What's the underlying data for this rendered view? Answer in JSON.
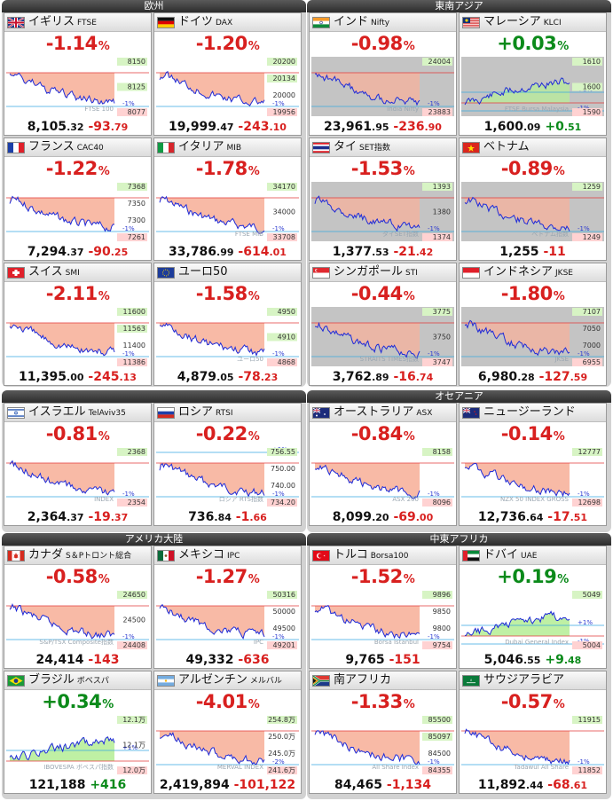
{
  "groups": [
    {
      "id": "europe",
      "title": "欧州",
      "cards": [
        {
          "name": "イギリス",
          "code": "FTSE",
          "pct": "-1.14",
          "price_int": "8,105",
          "price_dec": ".32",
          "change_int": "-93",
          "change_dec": ".79",
          "trend": "neg",
          "flag": "uk",
          "labels": [
            "8150",
            "8125",
            "8077"
          ],
          "ref_label": "8125",
          "closed": false,
          "watermark": "FTSE 100",
          "pct_lines": [
            "",
            "-1%"
          ]
        },
        {
          "name": "ドイツ",
          "code": "DAX",
          "pct": "-1.20",
          "price_int": "19,999",
          "price_dec": ".47",
          "change_int": "-243",
          "change_dec": ".10",
          "trend": "neg",
          "flag": "de",
          "labels": [
            "20200",
            "20134",
            "20000",
            "19956"
          ],
          "ref_label": "20134",
          "closed": false,
          "watermark": "",
          "pct_lines": [
            "",
            "-1%"
          ]
        },
        {
          "name": "フランス",
          "code": "CAC40",
          "pct": "-1.22",
          "price_int": "7,294",
          "price_dec": ".37",
          "change_int": "-90",
          "change_dec": ".25",
          "trend": "neg",
          "flag": "fr",
          "labels": [
            "7368",
            "7350",
            "7300",
            "7261"
          ],
          "ref_label": "7368",
          "closed": false,
          "watermark": "",
          "pct_lines": [
            "",
            "-1%"
          ]
        },
        {
          "name": "イタリア",
          "code": "MIB",
          "pct": "-1.78",
          "price_int": "33,786",
          "price_dec": ".99",
          "change_int": "-614",
          "change_dec": ".01",
          "trend": "neg",
          "flag": "it",
          "labels": [
            "34170",
            "34000",
            "33708"
          ],
          "ref_label": "34170",
          "closed": false,
          "watermark": "FTSE MIB",
          "pct_lines": [
            "",
            "-1%"
          ]
        },
        {
          "name": "スイス",
          "code": "SMI",
          "pct": "-2.11",
          "price_int": "11,395",
          "price_dec": ".00",
          "change_int": "-245",
          "change_dec": ".13",
          "trend": "neg",
          "flag": "ch",
          "labels": [
            "11600",
            "11563",
            "11400",
            "11386"
          ],
          "ref_label": "11563",
          "closed": false,
          "watermark": "",
          "pct_lines": [
            "",
            "-1%"
          ]
        },
        {
          "name": "ユーロ50",
          "code": "",
          "pct": "-1.58",
          "price_int": "4,879",
          "price_dec": ".05",
          "change_int": "-78",
          "change_dec": ".23",
          "trend": "neg",
          "flag": "eu",
          "labels": [
            "4950",
            "4910",
            "4868"
          ],
          "ref_label": "4910",
          "closed": false,
          "watermark": "ユーロ50",
          "pct_lines": [
            "",
            "-1%"
          ]
        }
      ]
    },
    {
      "id": "se-asia",
      "title": "東南アジア",
      "cards": [
        {
          "name": "インド",
          "code": "Nifty",
          "pct": "-0.98",
          "price_int": "23,961",
          "price_dec": ".95",
          "change_int": "-236",
          "change_dec": ".90",
          "trend": "neg",
          "flag": "in",
          "labels": [
            "24004",
            "23883"
          ],
          "ref_label": "24004",
          "closed": true,
          "watermark": "India Nifty",
          "pct_lines": [
            "",
            "-1%"
          ]
        },
        {
          "name": "マレーシア",
          "code": "KLCI",
          "pct": "+0.03",
          "price_int": "1,600",
          "price_dec": ".09",
          "change_int": "+0",
          "change_dec": ".51",
          "trend": "pos",
          "flag": "my",
          "labels": [
            "1610",
            "1600",
            "1590"
          ],
          "ref_label": "1600",
          "closed": true,
          "watermark": "FTSE Bursa Malaysia",
          "pct_lines": [
            "+1%",
            "-1%"
          ]
        },
        {
          "name": "タイ",
          "code": "SET指数",
          "pct": "-1.53",
          "price_int": "1,377",
          "price_dec": ".53",
          "change_int": "-21",
          "change_dec": ".42",
          "trend": "neg",
          "flag": "th",
          "labels": [
            "1393",
            "1380",
            "1374"
          ],
          "ref_label": "1393",
          "closed": true,
          "watermark": "タイSET指数",
          "pct_lines": [
            "",
            "-1%"
          ]
        },
        {
          "name": "ベトナム",
          "code": "",
          "pct": "-0.89",
          "price_int": "1,255",
          "price_dec": "",
          "change_int": "-11",
          "change_dec": "",
          "trend": "neg",
          "flag": "vn",
          "labels": [
            "1259",
            "1249"
          ],
          "ref_label": "1259",
          "closed": true,
          "watermark": "ベトナム指数",
          "pct_lines": [
            "",
            "-1%"
          ]
        },
        {
          "name": "シンガポール",
          "code": "STI",
          "pct": "-0.44",
          "price_int": "3,762",
          "price_dec": ".89",
          "change_int": "-16",
          "change_dec": ".74",
          "trend": "neg",
          "flag": "sg",
          "labels": [
            "3775",
            "3750",
            "3747"
          ],
          "ref_label": "3775",
          "closed": true,
          "watermark": "STRAITS TIMES指数",
          "pct_lines": [
            "",
            "-1%"
          ]
        },
        {
          "name": "インドネシア",
          "code": "JKSE",
          "pct": "-1.80",
          "price_int": "6,980",
          "price_dec": ".28",
          "change_int": "-127",
          "change_dec": ".59",
          "trend": "neg",
          "flag": "id",
          "labels": [
            "7107",
            "7050",
            "7000",
            "6955"
          ],
          "ref_label": "7107",
          "closed": true,
          "watermark": "JKSE",
          "pct_lines": [
            "",
            "-1%"
          ]
        }
      ]
    },
    {
      "id": "misc",
      "title": "",
      "cards": [
        {
          "name": "イスラエル",
          "code": "TelAviv35",
          "pct": "-0.81",
          "price_int": "2,364",
          "price_dec": ".37",
          "change_int": "-19",
          "change_dec": ".37",
          "trend": "neg",
          "flag": "il",
          "labels": [
            "2368",
            "2354"
          ],
          "ref_label": "2368",
          "closed": false,
          "watermark": "INDEX",
          "pct_lines": [
            "",
            "-1%"
          ]
        },
        {
          "name": "ロシア",
          "code": "RTSI",
          "pct": "-0.22",
          "price_int": "736",
          "price_dec": ".84",
          "change_int": "-1",
          "change_dec": ".66",
          "trend": "neg",
          "flag": "ru",
          "labels": [
            "756.55",
            "750.00",
            "740.00",
            "734.20"
          ],
          "ref_label": "734.20",
          "closed": false,
          "watermark": "ロシア RTS指数",
          "pct_lines": [
            "+1%",
            "-1%"
          ]
        }
      ]
    },
    {
      "id": "oceania",
      "title": "オセアニア",
      "cards": [
        {
          "name": "オーストラリア",
          "code": "ASX",
          "pct": "-0.84",
          "price_int": "8,099",
          "price_dec": ".20",
          "change_int": "-69",
          "change_dec": ".00",
          "trend": "neg",
          "flag": "au",
          "labels": [
            "8158",
            "8096"
          ],
          "ref_label": "8158",
          "closed": false,
          "watermark": "ASX 200",
          "pct_lines": [
            "",
            "-1%"
          ]
        },
        {
          "name": "ニュージーランド",
          "code": "",
          "pct": "-0.14",
          "price_int": "12,736",
          "price_dec": ".64",
          "change_int": "-17",
          "change_dec": ".51",
          "trend": "neg",
          "flag": "nz",
          "labels": [
            "12777",
            "12698"
          ],
          "ref_label": "12777",
          "closed": false,
          "watermark": "NZX 50 INDEX GROSS",
          "pct_lines": [
            "",
            "-1%"
          ]
        }
      ]
    },
    {
      "id": "americas",
      "title": "アメリカ大陸",
      "cards": [
        {
          "name": "カナダ",
          "code": "S＆Pトロント総合",
          "pct": "-0.58",
          "price_int": "24,414",
          "price_dec": "",
          "change_int": "-143",
          "change_dec": "",
          "trend": "neg",
          "flag": "ca",
          "labels": [
            "24650",
            "24500",
            "24408"
          ],
          "ref_label": "24650",
          "closed": false,
          "watermark": "S&P/TSX Composite指数",
          "pct_lines": [
            "",
            "-1%"
          ]
        },
        {
          "name": "メキシコ",
          "code": "IPC",
          "pct": "-1.27",
          "price_int": "49,332",
          "price_dec": "",
          "change_int": "-636",
          "change_dec": "",
          "trend": "neg",
          "flag": "mx",
          "labels": [
            "50316",
            "50000",
            "49500",
            "49201"
          ],
          "ref_label": "50316",
          "closed": false,
          "watermark": "IPC",
          "pct_lines": [
            "",
            "-1%"
          ]
        },
        {
          "name": "ブラジル",
          "code": "ボベスパ",
          "pct": "+0.34",
          "price_int": "121,188",
          "price_dec": "",
          "change_int": "+416",
          "change_dec": "",
          "trend": "pos",
          "flag": "br",
          "labels": [
            "12.1万",
            "12.1万",
            "12.0万"
          ],
          "ref_label": "12.0万",
          "closed": false,
          "watermark": "IBOVESPA ボベスパ指数",
          "pct_lines": [
            "+1%",
            ""
          ]
        },
        {
          "name": "アルゼンチン",
          "code": "メルバル",
          "pct": "-4.01",
          "price_int": "2,419,894",
          "price_dec": "",
          "change_int": "-101,122",
          "change_dec": "",
          "trend": "neg",
          "flag": "ar",
          "labels": [
            "254.8万",
            "250.0万",
            "245.0万",
            "241.6万"
          ],
          "ref_label": "254.8万",
          "closed": false,
          "watermark": "MERVAL INDEX",
          "pct_lines": [
            "",
            "-2%"
          ]
        }
      ]
    },
    {
      "id": "mideast-africa",
      "title": "中東アフリカ",
      "cards": [
        {
          "name": "トルコ",
          "code": "Borsa100",
          "pct": "-1.52",
          "price_int": "9,765",
          "price_dec": "",
          "change_int": "-151",
          "change_dec": "",
          "trend": "neg",
          "flag": "tr",
          "labels": [
            "9896",
            "9850",
            "9800",
            "9754"
          ],
          "ref_label": "9896",
          "closed": false,
          "watermark": "Borsa Istanbul",
          "pct_lines": [
            "",
            "-1%"
          ]
        },
        {
          "name": "ドバイ",
          "code": "UAE",
          "pct": "+0.19",
          "price_int": "5,046",
          "price_dec": ".55",
          "change_int": "+9",
          "change_dec": ".48",
          "trend": "pos",
          "flag": "ae",
          "labels": [
            "5049",
            "5004"
          ],
          "ref_label": "5049",
          "closed": false,
          "watermark": "Dubai General Index",
          "pct_lines": [
            "+1%",
            "-1%"
          ]
        },
        {
          "name": "南アフリカ",
          "code": "",
          "pct": "-1.33",
          "price_int": "84,465",
          "price_dec": "",
          "change_int": "-1,134",
          "change_dec": "",
          "trend": "neg",
          "flag": "za",
          "labels": [
            "85500",
            "85097",
            "84500",
            "84355"
          ],
          "ref_label": "85097",
          "closed": false,
          "watermark": "All Share Index",
          "pct_lines": [
            "",
            "-1%"
          ]
        },
        {
          "name": "サウジアラビア",
          "code": "",
          "pct": "-0.57",
          "price_int": "11,892",
          "price_dec": ".44",
          "change_int": "-68",
          "change_dec": ".61",
          "trend": "neg",
          "flag": "sa",
          "labels": [
            "11915",
            "11852"
          ],
          "ref_label": "11915",
          "closed": false,
          "watermark": "Tadawul All Share",
          "pct_lines": [
            "",
            "-1%"
          ]
        }
      ]
    }
  ],
  "colors": {
    "negative": "#d8201f",
    "positive": "#0b8a1a",
    "neg_fill": "#f7b29c",
    "pos_fill": "#b8ee9a",
    "line": "#1f2bd8",
    "closed_bg": "#c4c4c4"
  }
}
